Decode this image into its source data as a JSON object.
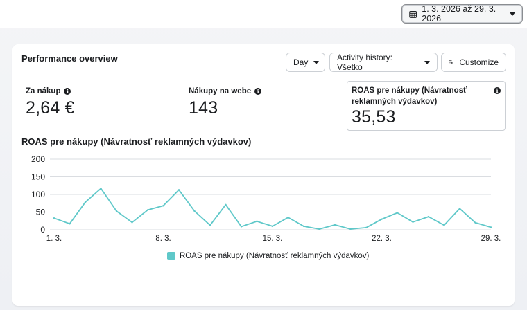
{
  "header": {
    "date_range": "1. 3. 2026 až 29. 3. 2026",
    "calendar_icon": "calendar-icon",
    "dropdown_icon": "caret-down-icon"
  },
  "card": {
    "title": "Performance overview",
    "controls": {
      "granularity": "Day",
      "activity_history": "Activity history: Všetko",
      "customize": "Customize"
    },
    "metrics": [
      {
        "label": "Za nákup",
        "value": "2,64 €"
      },
      {
        "label": "Nákupy na webe",
        "value": "143"
      },
      {
        "label_line1": "ROAS pre nákupy (Návratnosť",
        "label_line2": "reklamných výdavkov)",
        "value": "35,53"
      }
    ],
    "chart_title": "ROAS pre nákupy (Návratnosť reklamných výdavkov)"
  },
  "colors": {
    "series": "#5fc8c9",
    "grid": "#dadde1",
    "text": "#1c1e21"
  },
  "chart_data": {
    "type": "line",
    "title": "ROAS pre nákupy (Návratnosť reklamných výdavkov)",
    "xlabel": "",
    "ylabel": "",
    "ylim": [
      0,
      200
    ],
    "y_ticks": [
      0,
      50,
      100,
      150,
      200
    ],
    "x_tick_labels": [
      "1. 3.",
      "8. 3.",
      "15. 3.",
      "22. 3.",
      "29. 3."
    ],
    "x_tick_index": [
      0,
      7,
      14,
      21,
      28
    ],
    "grid": true,
    "legend_position": "bottom",
    "x": [
      "1. 3.",
      "2. 3.",
      "3. 3.",
      "4. 3.",
      "5. 3.",
      "6. 3.",
      "7. 3.",
      "8. 3.",
      "9. 3.",
      "10. 3.",
      "11. 3.",
      "12. 3.",
      "13. 3.",
      "14. 3.",
      "15. 3.",
      "16. 3.",
      "17. 3.",
      "18. 3.",
      "19. 3.",
      "20. 3.",
      "21. 3.",
      "22. 3.",
      "23. 3.",
      "24. 3.",
      "25. 3.",
      "26. 3.",
      "27. 3.",
      "28. 3.",
      "29. 3."
    ],
    "series": [
      {
        "name": "ROAS pre nákupy (Návratnosť reklamných výdavkov)",
        "values": [
          33,
          17,
          78,
          117,
          53,
          21,
          56,
          68,
          113,
          53,
          13,
          71,
          9,
          24,
          10,
          35,
          10,
          2,
          14,
          2,
          6,
          30,
          48,
          22,
          37,
          13,
          60,
          20,
          7
        ]
      }
    ]
  }
}
